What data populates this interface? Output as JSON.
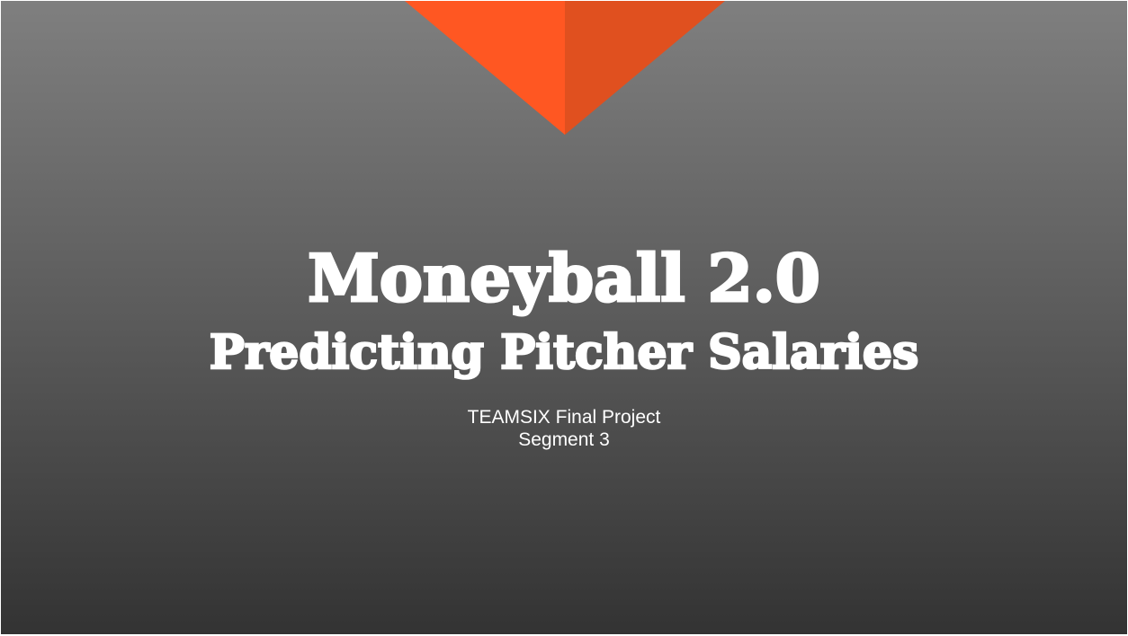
{
  "slide": {
    "title": "Moneyball 2.0",
    "subtitle_heading": "Predicting Pitcher Salaries",
    "team_line": "TEAMSIX Final Project",
    "segment_line": "Segment 3"
  },
  "colors": {
    "background_top": "#7f7f7f",
    "background_bottom": "#333333",
    "accent_left": "#ff5722",
    "accent_right": "#e0501f",
    "text": "#ffffff"
  }
}
